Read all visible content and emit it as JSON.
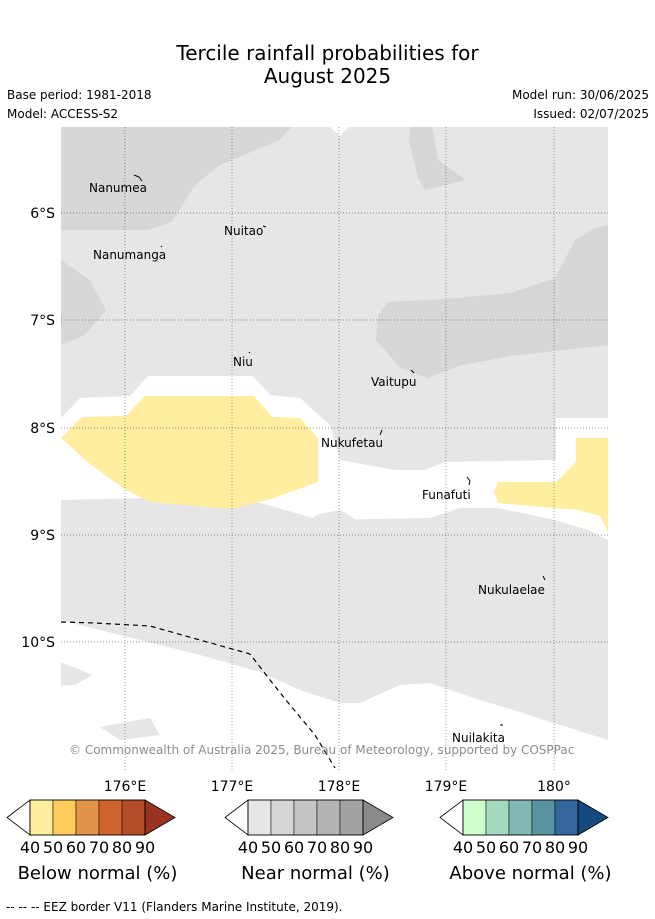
{
  "header": {
    "title_line1": "Tercile rainfall probabilities for",
    "title_line2": "August 2025",
    "base_period": "Base period: 1981-2018",
    "model": "Model: ACCESS-S2",
    "model_run": "Model run: 30/06/2025",
    "issued": "Issued: 02/07/2025"
  },
  "map": {
    "lat_labels": [
      "6°S",
      "7°S",
      "8°S",
      "9°S",
      "10°S"
    ],
    "lon_labels": [
      "176°E",
      "177°E",
      "178°E",
      "179°E",
      "180°"
    ],
    "islands": [
      "Nanumea",
      "Nuitao",
      "Nanumanga",
      "Niu",
      "Vaitupu",
      "Nukufetau",
      "Funafuti",
      "Nukulaelae",
      "Nuilakita"
    ],
    "copyright": "© Commonwealth of Australia 2025, Bureau of Meteorology, supported by COSPPac",
    "colors": {
      "background": "#e6e6e6",
      "near_normal_shade": "#d6d6d6",
      "below_normal_shade": "#ffeda0",
      "no_data": "#ffffff"
    }
  },
  "legends": [
    {
      "title": "Below normal (%)",
      "ticks": [
        "40",
        "50",
        "60",
        "70",
        "80",
        "90"
      ],
      "colors": [
        "#ffeda0",
        "#fecc5c",
        "#e3944a",
        "#d0632d",
        "#b34d27",
        "#9b3322"
      ]
    },
    {
      "title": "Near normal (%)",
      "ticks": [
        "40",
        "50",
        "60",
        "70",
        "80",
        "90"
      ],
      "colors": [
        "#e6e6e6",
        "#d6d6d6",
        "#c4c4c4",
        "#b4b4b4",
        "#a2a2a2",
        "#8a8a8a"
      ]
    },
    {
      "title": "Above normal (%)",
      "ticks": [
        "40",
        "50",
        "60",
        "70",
        "80",
        "90"
      ],
      "colors": [
        "#ccffcc",
        "#a3d9bd",
        "#82b8b3",
        "#5a93a2",
        "#33669a",
        "#16497e"
      ]
    }
  ],
  "footer": {
    "eez": "-- -- -- EEZ border V11 (Flanders Marine Institute, 2019)."
  }
}
